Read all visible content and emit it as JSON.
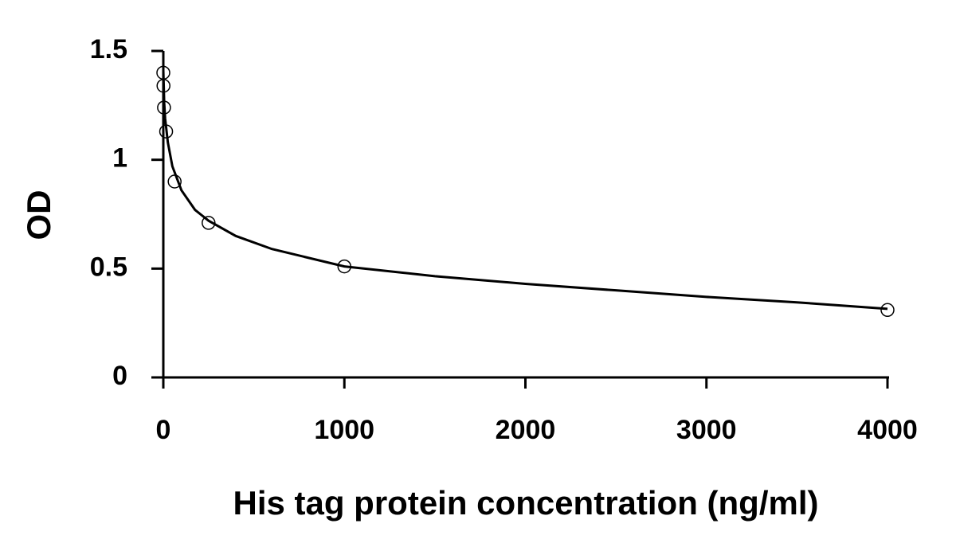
{
  "chart_data": {
    "type": "scatter",
    "xlabel": "His tag protein concentration (ng/ml)",
    "ylabel": "OD",
    "x": [
      0,
      0.98,
      3.9,
      15.6,
      62.5,
      250,
      1000,
      4000
    ],
    "series": [
      {
        "color": "#000000",
        "values": [
          1.4,
          1.34,
          1.24,
          1.13,
          0.9,
          0.71,
          0.51,
          0.31
        ]
      }
    ],
    "curve": {
      "color": "#000000",
      "x": [
        0,
        5,
        10,
        25,
        50,
        100,
        175,
        250,
        400,
        600,
        1000,
        1500,
        2000,
        2500,
        3000,
        3500,
        4000
      ],
      "values": [
        1.41,
        1.26,
        1.19,
        1.08,
        0.97,
        0.86,
        0.77,
        0.72,
        0.65,
        0.59,
        0.51,
        0.465,
        0.43,
        0.4,
        0.37,
        0.345,
        0.315
      ]
    },
    "xlim": [
      0,
      4000
    ],
    "xticks": [
      0,
      1000,
      2000,
      3000,
      4000
    ],
    "ylim": [
      0,
      1.5
    ],
    "yticks": [
      0,
      0.5,
      1,
      1.5
    ],
    "grid": false
  }
}
